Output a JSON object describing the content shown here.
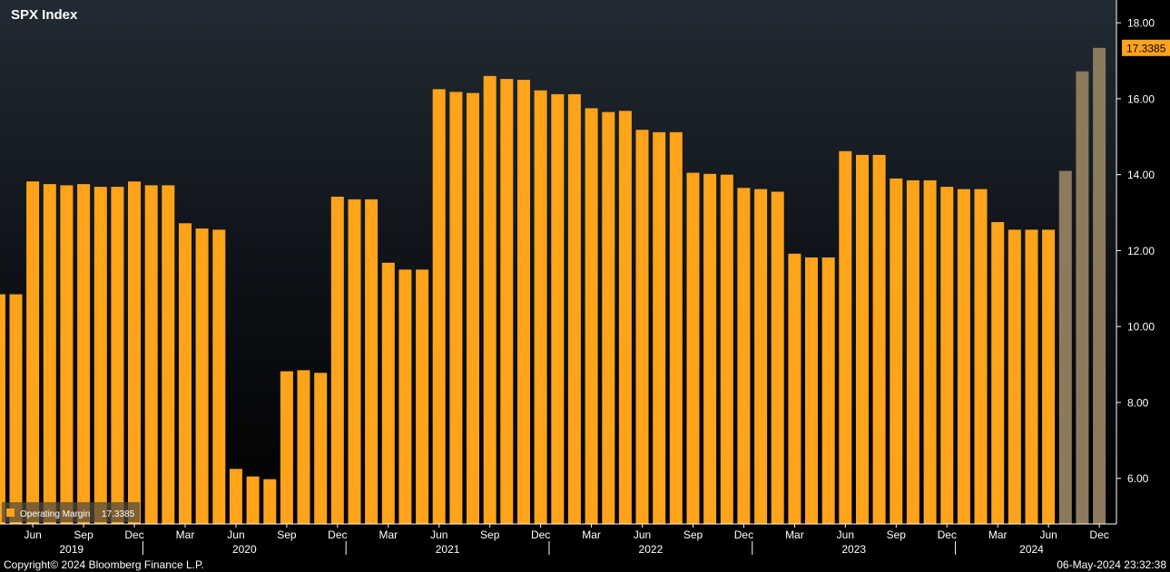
{
  "chart_data": {
    "type": "bar",
    "title": "SPX Index",
    "series": [
      {
        "name": "Operating Margin",
        "last_value_label": "17.3385",
        "values": [
          10.85,
          10.85,
          13.82,
          13.75,
          13.72,
          13.75,
          13.68,
          13.68,
          13.82,
          13.72,
          13.72,
          12.72,
          12.58,
          12.55,
          6.25,
          6.05,
          5.98,
          8.82,
          8.85,
          8.78,
          13.42,
          13.35,
          13.35,
          11.68,
          11.5,
          11.5,
          16.25,
          16.18,
          16.15,
          16.6,
          16.52,
          16.5,
          16.22,
          16.12,
          16.12,
          15.75,
          15.65,
          15.68,
          15.18,
          15.12,
          15.12,
          14.05,
          14.02,
          14.0,
          13.65,
          13.62,
          13.55,
          11.92,
          11.82,
          11.82,
          14.62,
          14.52,
          14.52,
          13.9,
          13.85,
          13.85,
          13.68,
          13.62,
          13.62,
          12.75,
          12.55,
          12.55,
          12.55,
          14.1,
          16.72,
          17.3385
        ],
        "estimate_from_index": 63
      }
    ],
    "ylim": [
      4.8,
      18.6
    ],
    "y_ticks": [
      "18.00",
      "16.00",
      "14.00",
      "12.00",
      "10.00",
      "8.00",
      "6.00"
    ],
    "month_labels": [
      {
        "index": 2,
        "label": "Jun"
      },
      {
        "index": 5,
        "label": "Sep"
      },
      {
        "index": 8,
        "label": "Dec"
      },
      {
        "index": 11,
        "label": "Mar"
      },
      {
        "index": 14,
        "label": "Jun"
      },
      {
        "index": 17,
        "label": "Sep"
      },
      {
        "index": 20,
        "label": "Dec"
      },
      {
        "index": 23,
        "label": "Mar"
      },
      {
        "index": 26,
        "label": "Jun"
      },
      {
        "index": 29,
        "label": "Sep"
      },
      {
        "index": 32,
        "label": "Dec"
      },
      {
        "index": 35,
        "label": "Mar"
      },
      {
        "index": 38,
        "label": "Jun"
      },
      {
        "index": 41,
        "label": "Sep"
      },
      {
        "index": 44,
        "label": "Dec"
      },
      {
        "index": 47,
        "label": "Mar"
      },
      {
        "index": 50,
        "label": "Jun"
      },
      {
        "index": 53,
        "label": "Sep"
      },
      {
        "index": 56,
        "label": "Dec"
      },
      {
        "index": 59,
        "label": "Mar"
      },
      {
        "index": 62,
        "label": "Jun"
      },
      {
        "index": 65,
        "label": "Dec"
      }
    ],
    "year_labels": [
      {
        "label": "2019",
        "start": 0,
        "end": 8
      },
      {
        "label": "2020",
        "start": 9,
        "end": 20
      },
      {
        "label": "2021",
        "start": 21,
        "end": 32
      },
      {
        "label": "2022",
        "start": 33,
        "end": 44
      },
      {
        "label": "2023",
        "start": 45,
        "end": 56
      },
      {
        "label": "2024",
        "start": 57,
        "end": 65
      }
    ],
    "legend_position": "bottom-left",
    "grid": false,
    "colors": {
      "actual": "#ffa31a",
      "estimate": "#8c7a5c",
      "label_box": "#ffa31a",
      "text": "#ffffff"
    }
  },
  "footer": {
    "copyright": "Copyright© 2024 Bloomberg Finance L.P.",
    "timestamp": "06-May-2024 23:32:38"
  }
}
